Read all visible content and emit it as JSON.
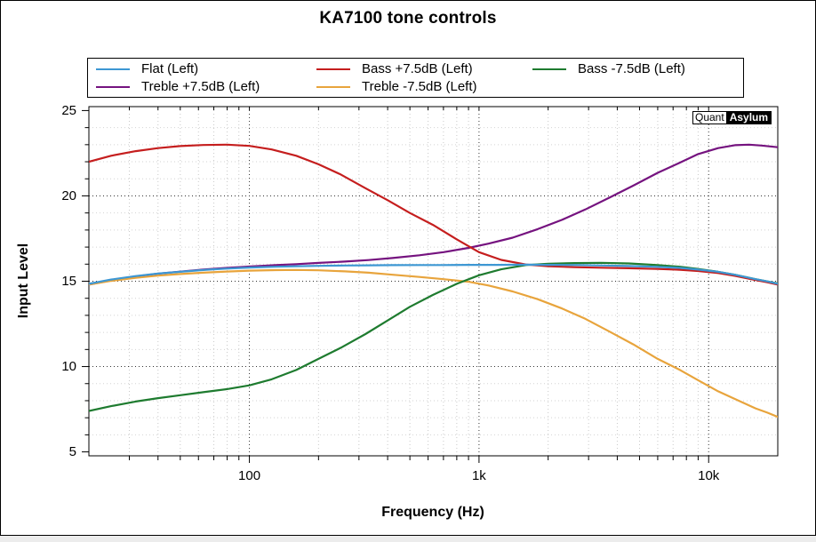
{
  "title": "KA7100 tone controls",
  "watermark": {
    "brand_left": "Quant",
    "brand_right": "Asylum"
  },
  "legend": {
    "items": [
      {
        "label": "Flat (Left)"
      },
      {
        "label": "Bass +7.5dB (Left)"
      },
      {
        "label": "Bass -7.5dB (Left)"
      },
      {
        "label": "Treble +7.5dB (Left)"
      },
      {
        "label": "Treble -7.5dB (Left)"
      }
    ]
  },
  "chart_data": {
    "type": "line",
    "title": "KA7100 tone controls",
    "xlabel": "Frequency (Hz)",
    "ylabel": "Input Level",
    "x_scale": "log",
    "xlim": [
      20,
      20000
    ],
    "ylim": [
      4.77,
      25.23
    ],
    "grid": "dotted, major and minor, both axes",
    "legend_position": "top",
    "x_ticks": [
      {
        "value": 100,
        "label": "100"
      },
      {
        "value": 1000,
        "label": "1k"
      },
      {
        "value": 10000,
        "label": "10k"
      }
    ],
    "y_ticks": [
      {
        "value": 5,
        "label": "5"
      },
      {
        "value": 10,
        "label": "10"
      },
      {
        "value": 15,
        "label": "15"
      },
      {
        "value": 20,
        "label": "20"
      },
      {
        "value": 25,
        "label": "25"
      }
    ],
    "x_minor_ticks": [
      30,
      40,
      50,
      60,
      70,
      80,
      90,
      200,
      300,
      400,
      500,
      600,
      700,
      800,
      900,
      2000,
      3000,
      4000,
      5000,
      6000,
      7000,
      8000,
      9000
    ],
    "y_minor_ticks": [
      6,
      7,
      8,
      9,
      11,
      12,
      13,
      14,
      16,
      17,
      18,
      19,
      21,
      22,
      23,
      24
    ],
    "series": [
      {
        "name": "Flat (Left)",
        "color": "#3D97D3",
        "points": [
          [
            20,
            14.85
          ],
          [
            25,
            15.1
          ],
          [
            32,
            15.3
          ],
          [
            40,
            15.45
          ],
          [
            50,
            15.55
          ],
          [
            65,
            15.67
          ],
          [
            80,
            15.74
          ],
          [
            100,
            15.8
          ],
          [
            130,
            15.85
          ],
          [
            160,
            15.88
          ],
          [
            200,
            15.9
          ],
          [
            260,
            15.92
          ],
          [
            330,
            15.93
          ],
          [
            420,
            15.94
          ],
          [
            550,
            15.95
          ],
          [
            700,
            15.95
          ],
          [
            900,
            15.96
          ],
          [
            1200,
            15.96
          ],
          [
            1600,
            15.97
          ],
          [
            2100,
            15.96
          ],
          [
            2700,
            15.95
          ],
          [
            3500,
            15.92
          ],
          [
            4500,
            15.89
          ],
          [
            5800,
            15.85
          ],
          [
            7500,
            15.78
          ],
          [
            9000,
            15.68
          ],
          [
            11000,
            15.55
          ],
          [
            13000,
            15.38
          ],
          [
            16000,
            15.12
          ],
          [
            18000,
            14.99
          ],
          [
            20000,
            14.85
          ]
        ]
      },
      {
        "name": "Bass +7.5dB (Left)",
        "color": "#C51E1E",
        "points": [
          [
            20,
            22.0
          ],
          [
            25,
            22.35
          ],
          [
            32,
            22.62
          ],
          [
            40,
            22.8
          ],
          [
            50,
            22.92
          ],
          [
            63,
            22.98
          ],
          [
            80,
            23.0
          ],
          [
            100,
            22.93
          ],
          [
            125,
            22.72
          ],
          [
            160,
            22.35
          ],
          [
            200,
            21.85
          ],
          [
            250,
            21.25
          ],
          [
            320,
            20.45
          ],
          [
            400,
            19.75
          ],
          [
            500,
            19.0
          ],
          [
            630,
            18.3
          ],
          [
            800,
            17.45
          ],
          [
            1000,
            16.7
          ],
          [
            1250,
            16.25
          ],
          [
            1600,
            15.98
          ],
          [
            2000,
            15.88
          ],
          [
            2600,
            15.82
          ],
          [
            3400,
            15.79
          ],
          [
            4500,
            15.76
          ],
          [
            6000,
            15.72
          ],
          [
            7500,
            15.67
          ],
          [
            9000,
            15.6
          ],
          [
            11000,
            15.48
          ],
          [
            13000,
            15.32
          ],
          [
            16000,
            15.07
          ],
          [
            18000,
            14.94
          ],
          [
            20000,
            14.8
          ]
        ]
      },
      {
        "name": "Bass -7.5dB (Left)",
        "color": "#1E7B2F",
        "points": [
          [
            20,
            7.4
          ],
          [
            25,
            7.68
          ],
          [
            32,
            7.95
          ],
          [
            40,
            8.15
          ],
          [
            50,
            8.32
          ],
          [
            63,
            8.5
          ],
          [
            80,
            8.68
          ],
          [
            100,
            8.9
          ],
          [
            125,
            9.25
          ],
          [
            160,
            9.8
          ],
          [
            200,
            10.45
          ],
          [
            250,
            11.1
          ],
          [
            320,
            11.9
          ],
          [
            400,
            12.7
          ],
          [
            500,
            13.5
          ],
          [
            630,
            14.2
          ],
          [
            800,
            14.85
          ],
          [
            1000,
            15.35
          ],
          [
            1250,
            15.7
          ],
          [
            1600,
            15.95
          ],
          [
            2000,
            16.02
          ],
          [
            2600,
            16.06
          ],
          [
            3400,
            16.08
          ],
          [
            4500,
            16.04
          ],
          [
            6000,
            15.95
          ],
          [
            7500,
            15.85
          ],
          [
            9000,
            15.72
          ],
          [
            11000,
            15.55
          ],
          [
            13000,
            15.38
          ],
          [
            16000,
            15.12
          ],
          [
            18000,
            14.99
          ],
          [
            20000,
            14.87
          ]
        ]
      },
      {
        "name": "Treble +7.5dB (Left)",
        "color": "#75137F",
        "points": [
          [
            20,
            14.8
          ],
          [
            25,
            15.05
          ],
          [
            32,
            15.28
          ],
          [
            40,
            15.44
          ],
          [
            50,
            15.56
          ],
          [
            63,
            15.68
          ],
          [
            80,
            15.78
          ],
          [
            100,
            15.86
          ],
          [
            130,
            15.94
          ],
          [
            160,
            16.0
          ],
          [
            200,
            16.07
          ],
          [
            260,
            16.15
          ],
          [
            330,
            16.24
          ],
          [
            420,
            16.36
          ],
          [
            550,
            16.52
          ],
          [
            700,
            16.7
          ],
          [
            900,
            16.95
          ],
          [
            1100,
            17.2
          ],
          [
            1400,
            17.55
          ],
          [
            1800,
            18.05
          ],
          [
            2300,
            18.6
          ],
          [
            2900,
            19.2
          ],
          [
            3700,
            19.9
          ],
          [
            4700,
            20.6
          ],
          [
            6000,
            21.35
          ],
          [
            7500,
            21.95
          ],
          [
            9000,
            22.45
          ],
          [
            11000,
            22.8
          ],
          [
            13000,
            22.97
          ],
          [
            15000,
            23.0
          ],
          [
            17000,
            22.95
          ],
          [
            20000,
            22.85
          ]
        ]
      },
      {
        "name": "Treble -7.5dB (Left)",
        "color": "#E8A43C",
        "points": [
          [
            20,
            14.8
          ],
          [
            25,
            15.02
          ],
          [
            32,
            15.2
          ],
          [
            40,
            15.33
          ],
          [
            50,
            15.42
          ],
          [
            63,
            15.5
          ],
          [
            80,
            15.57
          ],
          [
            100,
            15.62
          ],
          [
            130,
            15.65
          ],
          [
            160,
            15.66
          ],
          [
            200,
            15.64
          ],
          [
            260,
            15.58
          ],
          [
            330,
            15.5
          ],
          [
            420,
            15.38
          ],
          [
            550,
            15.25
          ],
          [
            700,
            15.12
          ],
          [
            900,
            14.97
          ],
          [
            1100,
            14.75
          ],
          [
            1400,
            14.4
          ],
          [
            1800,
            13.95
          ],
          [
            2300,
            13.4
          ],
          [
            2900,
            12.8
          ],
          [
            3700,
            12.05
          ],
          [
            4700,
            11.3
          ],
          [
            6000,
            10.45
          ],
          [
            7500,
            9.8
          ],
          [
            9000,
            9.2
          ],
          [
            11000,
            8.55
          ],
          [
            13000,
            8.1
          ],
          [
            16000,
            7.55
          ],
          [
            18000,
            7.3
          ],
          [
            20000,
            7.05
          ]
        ]
      }
    ]
  }
}
